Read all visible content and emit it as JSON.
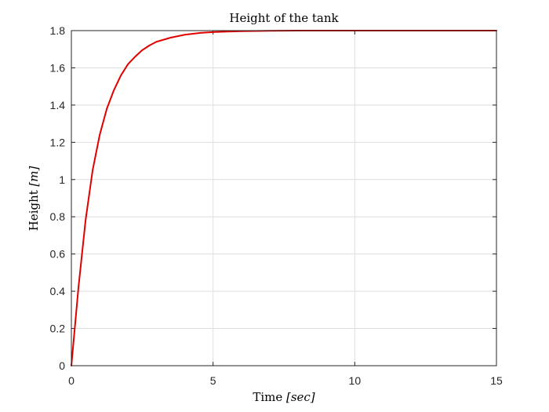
{
  "chart_data": {
    "type": "line",
    "title": "Height of the tank",
    "xlabel": {
      "prefix": "Time ",
      "var": "[sec]"
    },
    "ylabel": {
      "prefix": "Height ",
      "var": "[m]"
    },
    "xlim": [
      0,
      15
    ],
    "ylim": [
      0,
      1.8
    ],
    "xticks": [
      0,
      5,
      10,
      15
    ],
    "xtick_labels": [
      "0",
      "5",
      "10",
      "15"
    ],
    "yticks": [
      0,
      0.2,
      0.4,
      0.6,
      0.8,
      1,
      1.2,
      1.4,
      1.6,
      1.8
    ],
    "ytick_labels": [
      "0",
      "0.2",
      "0.4",
      "0.6",
      "0.8",
      "1",
      "1.2",
      "1.4",
      "1.6",
      "1.8"
    ],
    "grid": true,
    "series": [
      {
        "color": "#e00000",
        "x": [
          0,
          0.25,
          0.5,
          0.75,
          1.0,
          1.25,
          1.5,
          1.75,
          2.0,
          2.25,
          2.5,
          2.75,
          3.0,
          3.5,
          4.0,
          4.5,
          5.0,
          5.5,
          6.0,
          7.0,
          8.0,
          9.0,
          10.0,
          12.0,
          15.0
        ],
        "y": [
          0,
          0.42,
          0.78,
          1.05,
          1.24,
          1.38,
          1.48,
          1.56,
          1.62,
          1.66,
          1.695,
          1.72,
          1.74,
          1.762,
          1.778,
          1.787,
          1.792,
          1.795,
          1.797,
          1.799,
          1.8,
          1.8,
          1.8,
          1.8,
          1.8
        ]
      }
    ]
  }
}
